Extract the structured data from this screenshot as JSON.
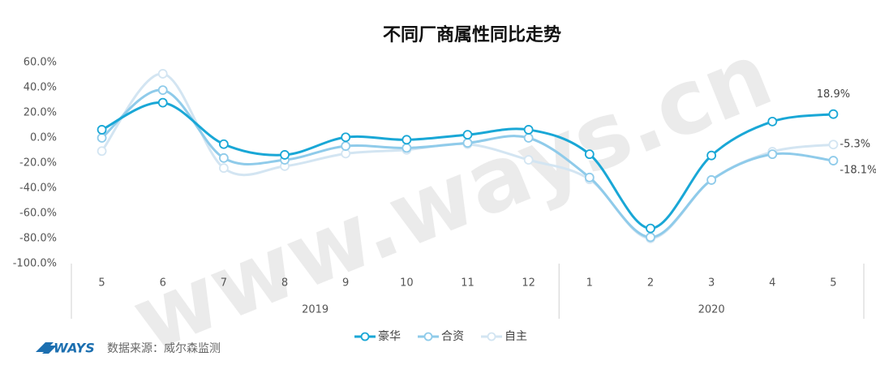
{
  "chart_data": {
    "type": "line",
    "title": "不同厂商属性同比走势",
    "categories": [
      "5",
      "6",
      "7",
      "8",
      "9",
      "10",
      "11",
      "12",
      "1",
      "2",
      "3",
      "4",
      "5"
    ],
    "x_groups": [
      {
        "label": "2019",
        "count": 8
      },
      {
        "label": "2020",
        "count": 5
      }
    ],
    "series": [
      {
        "name": "豪华",
        "color": "#19a7d6",
        "values": [
          6.5,
          28,
          -5,
          -13.5,
          0.5,
          -1.5,
          2.5,
          6.5,
          -13,
          -72,
          -14,
          13,
          18.9
        ],
        "value_labels": [
          null,
          null,
          null,
          null,
          null,
          null,
          null,
          null,
          null,
          null,
          null,
          null,
          "18.9%"
        ]
      },
      {
        "name": "合资",
        "color": "#8fcbea",
        "values": [
          0,
          38,
          -16,
          -17.5,
          -6.5,
          -8,
          -4,
          0,
          -31.5,
          -79,
          -33.5,
          -13,
          -18.1
        ],
        "value_labels": [
          null,
          null,
          null,
          null,
          null,
          null,
          null,
          null,
          null,
          null,
          null,
          null,
          "-18.1%"
        ]
      },
      {
        "name": "自主",
        "color": "#d3e5f2",
        "values": [
          -10.5,
          51,
          -24,
          -22.5,
          -12.5,
          -9.5,
          -5,
          -17.5,
          -33,
          -80,
          -33.5,
          -11,
          -5.3
        ],
        "value_labels": [
          null,
          null,
          null,
          null,
          null,
          null,
          null,
          null,
          null,
          null,
          null,
          null,
          "-5.3%"
        ]
      }
    ],
    "ylim": [
      -100,
      60
    ],
    "yticks": [
      {
        "value": 60,
        "label": "60.0%"
      },
      {
        "value": 40,
        "label": "40.0%"
      },
      {
        "value": 20,
        "label": "20.0%"
      },
      {
        "value": 0,
        "label": "0.0%"
      },
      {
        "value": -20,
        "label": "-20.0%"
      },
      {
        "value": -40,
        "label": "-40.0%"
      },
      {
        "value": -60,
        "label": "-60.0%"
      },
      {
        "value": -80,
        "label": "-80.0%"
      },
      {
        "value": -100,
        "label": "-100.0%"
      }
    ],
    "grid": false,
    "legend": "bottom",
    "watermark": "www.ways.cn",
    "logo": "WAYS",
    "source": "数据来源：威尔森监测"
  }
}
